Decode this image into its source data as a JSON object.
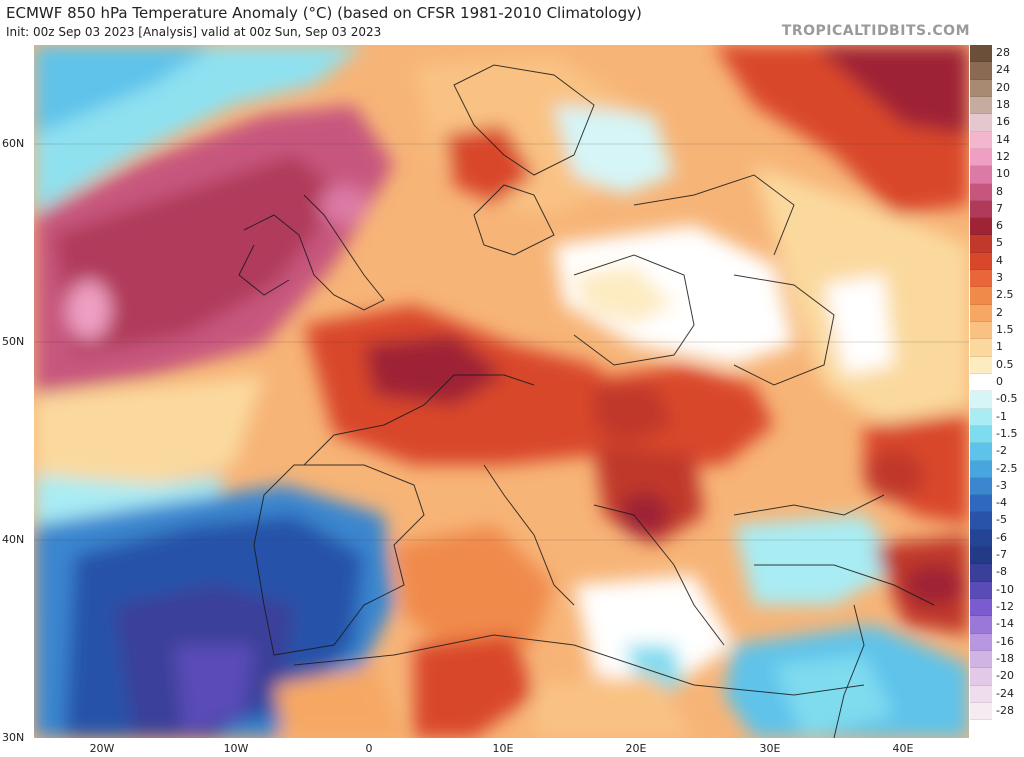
{
  "header": {
    "title": "ECMWF 850 hPa Temperature Anomaly (°C) (based on CFSR 1981-2010 Climatology)",
    "subtitle": "Init: 00z Sep 03 2023   [Analysis]   valid at 00z Sun, Sep 03 2023",
    "brand": "TROPICALTIDBITS.COM"
  },
  "map": {
    "lat_labels": [
      "60N",
      "50N",
      "40N",
      "30N"
    ],
    "lon_labels": [
      "20W",
      "10W",
      "0",
      "10E",
      "20E",
      "30E",
      "40E"
    ]
  },
  "colorbar": {
    "levels": [
      {
        "label": "28",
        "color": "#6b4f3a"
      },
      {
        "label": "24",
        "color": "#8a6a52"
      },
      {
        "label": "20",
        "color": "#a88a72"
      },
      {
        "label": "18",
        "color": "#c5aca0"
      },
      {
        "label": "16",
        "color": "#e4c7cf"
      },
      {
        "label": "14",
        "color": "#f2b6cf"
      },
      {
        "label": "12",
        "color": "#ee9fc2"
      },
      {
        "label": "10",
        "color": "#dc7aa6"
      },
      {
        "label": "8",
        "color": "#c7567e"
      },
      {
        "label": "7",
        "color": "#b03a5a"
      },
      {
        "label": "6",
        "color": "#9e2435"
      },
      {
        "label": "5",
        "color": "#c0392b"
      },
      {
        "label": "4",
        "color": "#d9472b"
      },
      {
        "label": "3",
        "color": "#e9663a"
      },
      {
        "label": "2.5",
        "color": "#f08a4b"
      },
      {
        "label": "2",
        "color": "#f6a863"
      },
      {
        "label": "1.5",
        "color": "#f9c283"
      },
      {
        "label": "1",
        "color": "#fbd99e"
      },
      {
        "label": "0.5",
        "color": "#fdebc2"
      },
      {
        "label": "0",
        "color": "#ffffff"
      },
      {
        "label": "-0.5",
        "color": "#d6f5f7"
      },
      {
        "label": "-1",
        "color": "#a9ecf4"
      },
      {
        "label": "-1.5",
        "color": "#7fdcef"
      },
      {
        "label": "-2",
        "color": "#5ec3ea"
      },
      {
        "label": "-2.5",
        "color": "#47a6df"
      },
      {
        "label": "-3",
        "color": "#3b86cf"
      },
      {
        "label": "-4",
        "color": "#2f68bf"
      },
      {
        "label": "-5",
        "color": "#2853a9"
      },
      {
        "label": "-6",
        "color": "#244596"
      },
      {
        "label": "-7",
        "color": "#233a86"
      },
      {
        "label": "-8",
        "color": "#3a3f9a"
      },
      {
        "label": "-10",
        "color": "#5a4cb8"
      },
      {
        "label": "-12",
        "color": "#7a5cd0"
      },
      {
        "label": "-14",
        "color": "#9978d8"
      },
      {
        "label": "-16",
        "color": "#b897e0"
      },
      {
        "label": "-18",
        "color": "#cfb4e4"
      },
      {
        "label": "-20",
        "color": "#e3c8e8"
      },
      {
        "label": "-24",
        "color": "#efdcec"
      },
      {
        "label": "-28",
        "color": "#f7ebf2"
      }
    ]
  }
}
